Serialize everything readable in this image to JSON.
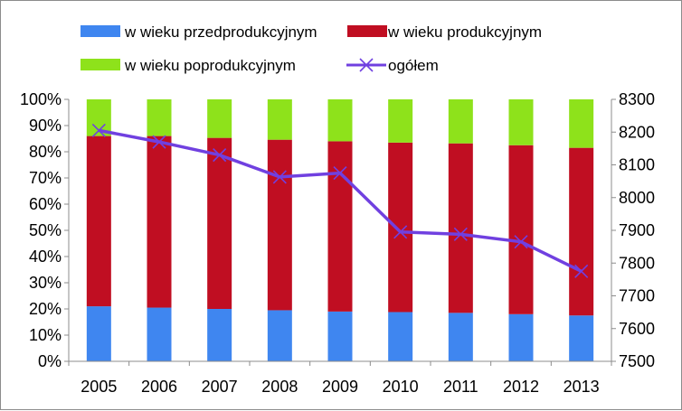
{
  "chart_data": {
    "type": "bar",
    "stacked": true,
    "normalized": true,
    "categories": [
      "2005",
      "2006",
      "2007",
      "2008",
      "2009",
      "2010",
      "2011",
      "2012",
      "2013"
    ],
    "series": [
      {
        "name": "w wieku przedprodukcyjnym",
        "color": "#3f86f0",
        "values": [
          21,
          20.5,
          20,
          19.5,
          19,
          18.8,
          18.5,
          18,
          17.5
        ]
      },
      {
        "name": "w wieku produkcyjnym",
        "color": "#c00e22",
        "values": [
          65,
          65.5,
          65.3,
          65.1,
          65,
          64.7,
          64.7,
          64.5,
          64
        ]
      },
      {
        "name": "w wieku poprodukcyjnym",
        "color": "#8ee21b",
        "values": [
          14,
          14,
          14.7,
          15.4,
          16,
          16.5,
          16.8,
          17.5,
          18.5
        ]
      }
    ],
    "line_series": {
      "name": "ogółem",
      "color": "#7040e0",
      "axis": "right",
      "values": [
        8205,
        8170,
        8130,
        8063,
        8075,
        7895,
        7888,
        7865,
        7775
      ]
    },
    "y_left": {
      "range": [
        0,
        100
      ],
      "ticks": [
        "0%",
        "10%",
        "20%",
        "30%",
        "40%",
        "50%",
        "60%",
        "70%",
        "80%",
        "90%",
        "100%"
      ]
    },
    "y_right": {
      "range": [
        7500,
        8300
      ],
      "ticks": [
        "7500",
        "7600",
        "7700",
        "7800",
        "7900",
        "8000",
        "8100",
        "8200",
        "8300"
      ]
    },
    "legend_position": "top",
    "grid": false
  }
}
